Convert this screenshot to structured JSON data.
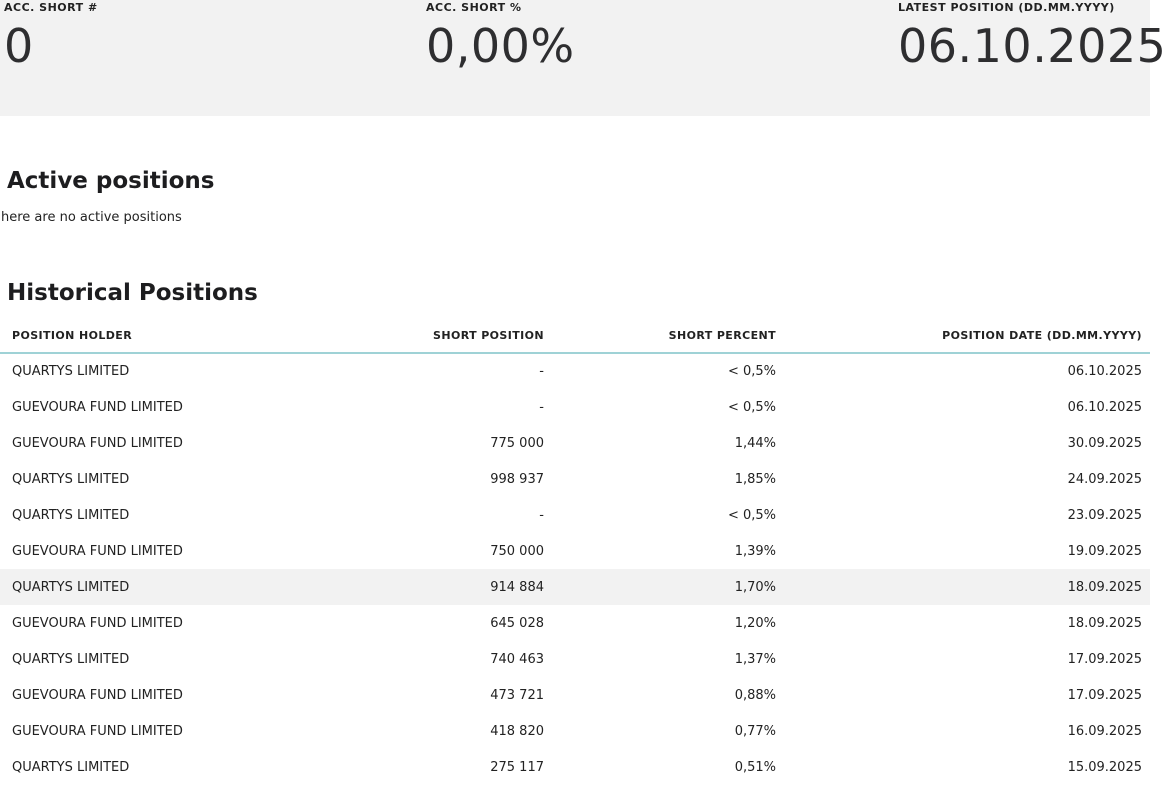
{
  "summary": {
    "acc_short_count_label": "ACC. SHORT #",
    "acc_short_count_value": "0",
    "acc_short_pct_label": "ACC. SHORT %",
    "acc_short_pct_value": "0,00%",
    "latest_position_label": "LATEST POSITION (DD.MM.YYYY)",
    "latest_position_value": "06.10.2025"
  },
  "active": {
    "title": "Active positions",
    "empty_text": "here are no active positions"
  },
  "historical": {
    "title": "Historical Positions",
    "columns": [
      "POSITION HOLDER",
      "SHORT POSITION",
      "SHORT PERCENT",
      "POSITION DATE (DD.MM.YYYY)"
    ],
    "rows": [
      {
        "holder": "QUARTYS LIMITED",
        "position": "-",
        "percent": "< 0,5%",
        "date": "06.10.2025"
      },
      {
        "holder": "GUEVOURA FUND LIMITED",
        "position": "-",
        "percent": "< 0,5%",
        "date": "06.10.2025"
      },
      {
        "holder": "GUEVOURA FUND LIMITED",
        "position": "775 000",
        "percent": "1,44%",
        "date": "30.09.2025"
      },
      {
        "holder": "QUARTYS LIMITED",
        "position": "998 937",
        "percent": "1,85%",
        "date": "24.09.2025"
      },
      {
        "holder": "QUARTYS LIMITED",
        "position": "-",
        "percent": "< 0,5%",
        "date": "23.09.2025"
      },
      {
        "holder": "GUEVOURA FUND LIMITED",
        "position": "750 000",
        "percent": "1,39%",
        "date": "19.09.2025"
      },
      {
        "holder": "QUARTYS LIMITED",
        "position": "914 884",
        "percent": "1,70%",
        "date": "18.09.2025"
      },
      {
        "holder": "GUEVOURA FUND LIMITED",
        "position": "645 028",
        "percent": "1,20%",
        "date": "18.09.2025"
      },
      {
        "holder": "QUARTYS LIMITED",
        "position": "740 463",
        "percent": "1,37%",
        "date": "17.09.2025"
      },
      {
        "holder": "GUEVOURA FUND LIMITED",
        "position": "473 721",
        "percent": "0,88%",
        "date": "17.09.2025"
      },
      {
        "holder": "GUEVOURA FUND LIMITED",
        "position": "418 820",
        "percent": "0,77%",
        "date": "16.09.2025"
      },
      {
        "holder": "QUARTYS LIMITED",
        "position": "275 117",
        "percent": "0,51%",
        "date": "15.09.2025"
      }
    ]
  }
}
